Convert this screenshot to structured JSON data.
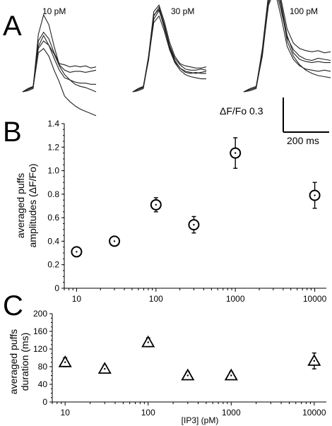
{
  "panel_labels": {
    "a": "A",
    "b": "B",
    "c": "C"
  },
  "trace_panels": [
    {
      "label": "10 pM"
    },
    {
      "label": "30 pM"
    },
    {
      "label": "100 pM"
    }
  ],
  "scale_bar": {
    "y_label": "ΔF/Fo 0.3",
    "x_label": "200 ms"
  },
  "chart_data": [
    {
      "type": "line",
      "panel": "A",
      "conditions": [
        "10 pM",
        "30 pM",
        "100 pM"
      ],
      "scale_bar": {
        "amplitude": 0.3,
        "amplitude_unit": "ΔF/Fo",
        "duration_ms": 200
      },
      "traces": [
        [
          [
            0,
            0.02,
            0.04,
            0.53,
            0.71,
            0.62,
            0.42,
            0.25,
            0.2,
            0.18,
            0.19,
            0.19,
            0.18,
            0.19,
            0.2
          ],
          [
            0,
            0.03,
            0.05,
            0.4,
            0.47,
            0.43,
            0.35,
            0.24,
            0.16,
            0.11,
            0.07,
            0.05,
            0.04,
            0.02,
            0.0
          ],
          [
            0,
            0.01,
            0.03,
            0.42,
            0.52,
            0.43,
            0.31,
            0.2,
            0.13,
            0.11,
            0.09,
            0.08,
            0.08,
            0.07,
            0.07
          ],
          [
            0,
            0.02,
            0.05,
            0.47,
            0.55,
            0.49,
            0.36,
            0.26,
            0.25,
            0.23,
            0.24,
            0.23,
            0.24,
            0.22,
            0.23
          ],
          [
            0,
            0.02,
            0.04,
            0.36,
            0.4,
            0.33,
            0.2,
            0.09,
            -0.04,
            -0.09,
            -0.13,
            -0.16,
            -0.18,
            -0.2,
            -0.22
          ]
        ],
        [
          [
            0,
            0.02,
            0.04,
            0.33,
            0.74,
            0.8,
            0.65,
            0.46,
            0.33,
            0.26,
            0.24,
            0.23,
            0.22,
            0.22,
            0.23
          ],
          [
            0,
            0.03,
            0.05,
            0.29,
            0.67,
            0.75,
            0.61,
            0.4,
            0.28,
            0.22,
            0.18,
            0.17,
            0.18,
            0.17,
            0.17
          ],
          [
            0,
            0.01,
            0.03,
            0.31,
            0.64,
            0.7,
            0.56,
            0.39,
            0.27,
            0.2,
            0.16,
            0.14,
            0.13,
            0.12,
            0.12
          ],
          [
            0,
            0.02,
            0.04,
            0.3,
            0.7,
            0.78,
            0.62,
            0.43,
            0.31,
            0.25,
            0.21,
            0.2,
            0.2,
            0.21,
            0.2
          ],
          [
            0,
            0.02,
            0.05,
            0.32,
            0.71,
            0.76,
            0.59,
            0.42,
            0.29,
            0.22,
            0.19,
            0.18,
            0.17,
            0.18,
            0.19
          ]
        ],
        [
          [
            0,
            0.02,
            0.04,
            0.4,
            0.9,
            1.08,
            0.86,
            0.58,
            0.45,
            0.4,
            0.38,
            0.37,
            0.38,
            0.36,
            0.37
          ],
          [
            0,
            0.01,
            0.03,
            0.35,
            0.85,
            1.02,
            0.8,
            0.47,
            0.33,
            0.25,
            0.2,
            0.17,
            0.15,
            0.14,
            0.13
          ],
          [
            0,
            0.03,
            0.05,
            0.37,
            0.88,
            1.05,
            0.82,
            0.52,
            0.36,
            0.3,
            0.28,
            0.27,
            0.28,
            0.27,
            0.27
          ],
          [
            0,
            0.02,
            0.04,
            0.33,
            0.82,
            0.98,
            0.76,
            0.5,
            0.39,
            0.33,
            0.3,
            0.29,
            0.31,
            0.3,
            0.29
          ],
          [
            0,
            0.02,
            0.04,
            0.36,
            0.8,
            0.94,
            0.7,
            0.42,
            0.3,
            0.24,
            0.21,
            0.2,
            0.19,
            0.2,
            0.19
          ]
        ]
      ]
    },
    {
      "type": "scatter",
      "panel": "B",
      "ylabel": "averaged puffs amplitudes (ΔF/Fo)",
      "xlabel": "",
      "x_scale": "log",
      "xlim": [
        7,
        14000
      ],
      "ylim": [
        0,
        1.4
      ],
      "x_ticks": [
        "10",
        "100",
        "1000",
        "10000"
      ],
      "y_ticks": [
        "0",
        "0.2",
        "0.4",
        "0.6",
        "0.8",
        "1.0",
        "1.2",
        "1.4"
      ],
      "marker": "circle",
      "points": [
        {
          "x": 10,
          "y": 0.31,
          "err": 0.02
        },
        {
          "x": 30,
          "y": 0.4,
          "err": 0.03
        },
        {
          "x": 100,
          "y": 0.71,
          "err": 0.06
        },
        {
          "x": 300,
          "y": 0.54,
          "err": 0.07
        },
        {
          "x": 1000,
          "y": 1.15,
          "err": 0.13
        },
        {
          "x": 10000,
          "y": 0.79,
          "err": 0.11
        }
      ]
    },
    {
      "type": "scatter",
      "panel": "C",
      "ylabel": "averaged puffs duration (ms)",
      "xlabel": "[IP3] (pM)",
      "x_scale": "log",
      "xlim": [
        7,
        14000
      ],
      "ylim": [
        0,
        200
      ],
      "x_ticks": [
        "10",
        "100",
        "1000",
        "10000"
      ],
      "y_ticks": [
        "0",
        "40",
        "80",
        "120",
        "160",
        "200"
      ],
      "marker": "triangle",
      "points": [
        {
          "x": 10,
          "y": 90,
          "err": 10
        },
        {
          "x": 30,
          "y": 75,
          "err": 8
        },
        {
          "x": 100,
          "y": 135,
          "err": 10
        },
        {
          "x": 300,
          "y": 60,
          "err": 8
        },
        {
          "x": 1000,
          "y": 60,
          "err": 8
        },
        {
          "x": 10000,
          "y": 93,
          "err": 18
        }
      ]
    }
  ]
}
